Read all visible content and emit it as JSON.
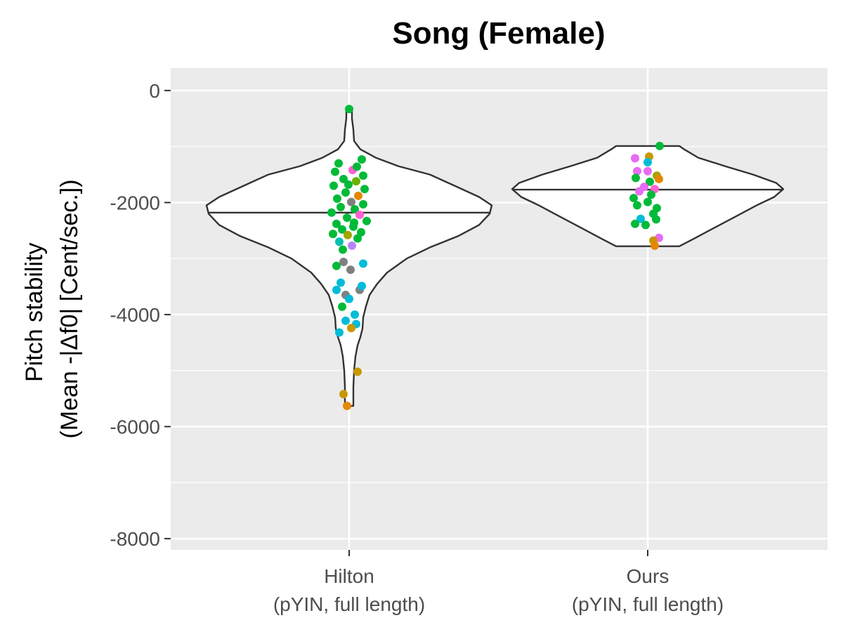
{
  "chart_data": {
    "type": "violin",
    "title": "Song (Female)",
    "ylabel_lines": [
      "Pitch stability",
      "(Mean -|Δf0| [Cent/sec.])"
    ],
    "xlabel": "",
    "ylim": [
      -8200,
      400
    ],
    "yticks": [
      0,
      -2000,
      -4000,
      -6000,
      -8000
    ],
    "ytick_labels": [
      "0",
      "-2000",
      "-4000",
      "-6000",
      "-8000"
    ],
    "grid": true,
    "categories": [
      {
        "label_lines": [
          "Hilton",
          "(pYIN, full length)"
        ]
      },
      {
        "label_lines": [
          "Ours",
          "(pYIN, full length)"
        ]
      }
    ],
    "violins": [
      {
        "median": -2180,
        "density": [
          [
            -5630,
            6
          ],
          [
            -5300,
            6
          ],
          [
            -5000,
            7
          ],
          [
            -4750,
            9
          ],
          [
            -4550,
            12
          ],
          [
            -4400,
            16
          ],
          [
            -4250,
            19
          ],
          [
            -4050,
            20
          ],
          [
            -3850,
            24
          ],
          [
            -3650,
            29
          ],
          [
            -3450,
            40
          ],
          [
            -3250,
            54
          ],
          [
            -3000,
            82
          ],
          [
            -2800,
            115
          ],
          [
            -2600,
            155
          ],
          [
            -2400,
            185
          ],
          [
            -2200,
            200
          ],
          [
            -2050,
            203
          ],
          [
            -1900,
            185
          ],
          [
            -1700,
            150
          ],
          [
            -1500,
            115
          ],
          [
            -1350,
            70
          ],
          [
            -1200,
            38
          ],
          [
            -1050,
            16
          ],
          [
            -900,
            7
          ],
          [
            -700,
            6
          ],
          [
            -500,
            4
          ],
          [
            -330,
            4
          ]
        ]
      },
      {
        "median": -1770,
        "density": [
          [
            -2780,
            45
          ],
          [
            -2650,
            65
          ],
          [
            -2450,
            95
          ],
          [
            -2250,
            125
          ],
          [
            -2050,
            155
          ],
          [
            -1900,
            180
          ],
          [
            -1760,
            193
          ],
          [
            -1650,
            183
          ],
          [
            -1500,
            150
          ],
          [
            -1350,
            110
          ],
          [
            -1200,
            72
          ],
          [
            -1050,
            52
          ],
          [
            -990,
            45
          ]
        ]
      }
    ],
    "point_palette": [
      "#F8766D",
      "#E58700",
      "#C99800",
      "#A3A500",
      "#6BB100",
      "#00BA38",
      "#00BF7D",
      "#00C0AF",
      "#00BCD8",
      "#00B0F6",
      "#619CFF",
      "#B983FF",
      "#E76BF3",
      "#FD61D1",
      "#808080"
    ],
    "points": [
      {
        "cat": 0,
        "dx": 0,
        "y": -330,
        "c": "#00BA38"
      },
      {
        "cat": 0,
        "dx": -15,
        "y": -1300,
        "c": "#00BA38"
      },
      {
        "cat": 0,
        "dx": 18,
        "y": -1230,
        "c": "#00BA38"
      },
      {
        "cat": 0,
        "dx": 5,
        "y": -1420,
        "c": "#FD61D1"
      },
      {
        "cat": 0,
        "dx": -20,
        "y": -1450,
        "c": "#00BA38"
      },
      {
        "cat": 0,
        "dx": 20,
        "y": -1520,
        "c": "#00BA38"
      },
      {
        "cat": 0,
        "dx": -8,
        "y": -1580,
        "c": "#00BA38"
      },
      {
        "cat": 0,
        "dx": 10,
        "y": -1620,
        "c": "#6BB100"
      },
      {
        "cat": 0,
        "dx": -22,
        "y": -1700,
        "c": "#00BA38"
      },
      {
        "cat": 0,
        "dx": 22,
        "y": -1760,
        "c": "#00BA38"
      },
      {
        "cat": 0,
        "dx": -5,
        "y": -1820,
        "c": "#00BA38"
      },
      {
        "cat": 0,
        "dx": 13,
        "y": -1880,
        "c": "#E58700"
      },
      {
        "cat": 0,
        "dx": -17,
        "y": -1930,
        "c": "#00BA38"
      },
      {
        "cat": 0,
        "dx": 3,
        "y": -1990,
        "c": "#808080"
      },
      {
        "cat": 0,
        "dx": 20,
        "y": -2030,
        "c": "#00BA38"
      },
      {
        "cat": 0,
        "dx": -12,
        "y": -2080,
        "c": "#00BA38"
      },
      {
        "cat": 0,
        "dx": 8,
        "y": -2120,
        "c": "#00BA38"
      },
      {
        "cat": 0,
        "dx": -25,
        "y": -2180,
        "c": "#00BA38"
      },
      {
        "cat": 0,
        "dx": 15,
        "y": -2220,
        "c": "#FD61D1"
      },
      {
        "cat": 0,
        "dx": -3,
        "y": -2270,
        "c": "#00BA38"
      },
      {
        "cat": 0,
        "dx": 25,
        "y": -2330,
        "c": "#00BA38"
      },
      {
        "cat": 0,
        "dx": -18,
        "y": -2380,
        "c": "#00BA38"
      },
      {
        "cat": 0,
        "dx": 6,
        "y": -2430,
        "c": "#00BA38"
      },
      {
        "cat": 0,
        "dx": -10,
        "y": -2480,
        "c": "#00BA38"
      },
      {
        "cat": 0,
        "dx": 17,
        "y": -2530,
        "c": "#00BA38"
      },
      {
        "cat": 0,
        "dx": -2,
        "y": -2580,
        "c": "#A3A500"
      },
      {
        "cat": 0,
        "dx": 12,
        "y": -2640,
        "c": "#00BA38"
      },
      {
        "cat": 0,
        "dx": -14,
        "y": -2700,
        "c": "#00C0AF"
      },
      {
        "cat": 0,
        "dx": 4,
        "y": -2770,
        "c": "#B983FF"
      },
      {
        "cat": 0,
        "dx": -9,
        "y": -2840,
        "c": "#00BA38"
      },
      {
        "cat": 0,
        "dx": 11,
        "y": -1360,
        "c": "#00BA38"
      },
      {
        "cat": 0,
        "dx": -1,
        "y": -1680,
        "c": "#00BA38"
      },
      {
        "cat": 0,
        "dx": 7,
        "y": -2360,
        "c": "#00BA38"
      },
      {
        "cat": 0,
        "dx": -23,
        "y": -2560,
        "c": "#00BA38"
      },
      {
        "cat": 0,
        "dx": -18,
        "y": -3130,
        "c": "#00BA38"
      },
      {
        "cat": 0,
        "dx": -8,
        "y": -3060,
        "c": "#808080"
      },
      {
        "cat": 0,
        "dx": 2,
        "y": -3200,
        "c": "#808080"
      },
      {
        "cat": 0,
        "dx": 20,
        "y": -3090,
        "c": "#00BCD8"
      },
      {
        "cat": 0,
        "dx": -12,
        "y": -3430,
        "c": "#00BCD8"
      },
      {
        "cat": 0,
        "dx": 15,
        "y": -3560,
        "c": "#808080"
      },
      {
        "cat": 0,
        "dx": 18,
        "y": -3490,
        "c": "#00BCD8"
      },
      {
        "cat": 0,
        "dx": -5,
        "y": -3650,
        "c": "#808080"
      },
      {
        "cat": 0,
        "dx": -18,
        "y": -3560,
        "c": "#00BCD8"
      },
      {
        "cat": 0,
        "dx": -10,
        "y": -3860,
        "c": "#00BA38"
      },
      {
        "cat": 0,
        "dx": 0,
        "y": -3720,
        "c": "#00BCD8"
      },
      {
        "cat": 0,
        "dx": 8,
        "y": -4000,
        "c": "#00BCD8"
      },
      {
        "cat": 0,
        "dx": -5,
        "y": -4110,
        "c": "#00BCD8"
      },
      {
        "cat": 0,
        "dx": 10,
        "y": -4170,
        "c": "#00BCD8"
      },
      {
        "cat": 0,
        "dx": 3,
        "y": -4240,
        "c": "#C99800"
      },
      {
        "cat": 0,
        "dx": -14,
        "y": -4320,
        "c": "#00BCD8"
      },
      {
        "cat": 0,
        "dx": 12,
        "y": -5020,
        "c": "#C99800"
      },
      {
        "cat": 0,
        "dx": -8,
        "y": -5420,
        "c": "#C99800"
      },
      {
        "cat": 0,
        "dx": -3,
        "y": -5630,
        "c": "#E58700"
      },
      {
        "cat": 1,
        "dx": 17,
        "y": -990,
        "c": "#00BA38"
      },
      {
        "cat": 1,
        "dx": -18,
        "y": -1210,
        "c": "#E76BF3"
      },
      {
        "cat": 1,
        "dx": 2,
        "y": -1180,
        "c": "#C99800"
      },
      {
        "cat": 1,
        "dx": 0,
        "y": -1280,
        "c": "#00BCD8"
      },
      {
        "cat": 1,
        "dx": -15,
        "y": -1440,
        "c": "#E76BF3"
      },
      {
        "cat": 1,
        "dx": 0,
        "y": -1440,
        "c": "#E76BF3"
      },
      {
        "cat": 1,
        "dx": 13,
        "y": -1520,
        "c": "#A3A500"
      },
      {
        "cat": 1,
        "dx": 16,
        "y": -1580,
        "c": "#E58700"
      },
      {
        "cat": 1,
        "dx": -17,
        "y": -1560,
        "c": "#00BA38"
      },
      {
        "cat": 1,
        "dx": 3,
        "y": -1630,
        "c": "#00BA38"
      },
      {
        "cat": 1,
        "dx": -5,
        "y": -1720,
        "c": "#E76BF3"
      },
      {
        "cat": 1,
        "dx": 10,
        "y": -1760,
        "c": "#FD61D1"
      },
      {
        "cat": 1,
        "dx": -12,
        "y": -1800,
        "c": "#E76BF3"
      },
      {
        "cat": 1,
        "dx": 5,
        "y": -1860,
        "c": "#00BA38"
      },
      {
        "cat": 1,
        "dx": -20,
        "y": -1920,
        "c": "#00BA38"
      },
      {
        "cat": 1,
        "dx": 0,
        "y": -1990,
        "c": "#00BA38"
      },
      {
        "cat": 1,
        "dx": -15,
        "y": -2050,
        "c": "#00BA38"
      },
      {
        "cat": 1,
        "dx": 13,
        "y": -2100,
        "c": "#00BA38"
      },
      {
        "cat": 1,
        "dx": 8,
        "y": -2200,
        "c": "#00BA38"
      },
      {
        "cat": 1,
        "dx": -10,
        "y": -2290,
        "c": "#00BCD8"
      },
      {
        "cat": 1,
        "dx": 12,
        "y": -2300,
        "c": "#00BA38"
      },
      {
        "cat": 1,
        "dx": -18,
        "y": -2380,
        "c": "#00BA38"
      },
      {
        "cat": 1,
        "dx": -3,
        "y": -2400,
        "c": "#00BA38"
      },
      {
        "cat": 1,
        "dx": 16,
        "y": -2630,
        "c": "#E76BF3"
      },
      {
        "cat": 1,
        "dx": 8,
        "y": -2680,
        "c": "#C99800"
      },
      {
        "cat": 1,
        "dx": 10,
        "y": -2770,
        "c": "#E58700"
      }
    ]
  }
}
